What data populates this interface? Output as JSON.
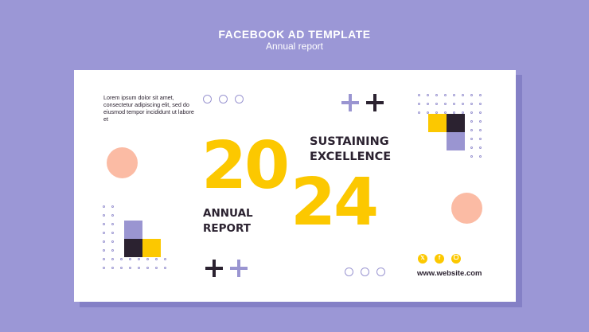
{
  "header": {
    "title": "FACEBOOK AD TEMPLATE",
    "subtitle": "Annual report"
  },
  "ad": {
    "lorem": "Lorem ipsum dolor sit amet, consectetur adipiscing elit, sed do eiusmod tempor incididunt ut labore et",
    "year_top": "20",
    "year_bottom": "24",
    "headline_line1": "SUSTAINING",
    "headline_line2": "EXCELLENCE",
    "label_line1": "ANNUAL",
    "label_line2": "REPORT",
    "website": "www.website.com",
    "social_icons": [
      "x-icon",
      "facebook-icon",
      "instagram-icon"
    ]
  },
  "colors": {
    "background": "#9b97d6",
    "yellow": "#fcc800",
    "lavender": "#9a95d1",
    "dark": "#2b2230",
    "peach": "#fbbba4"
  }
}
